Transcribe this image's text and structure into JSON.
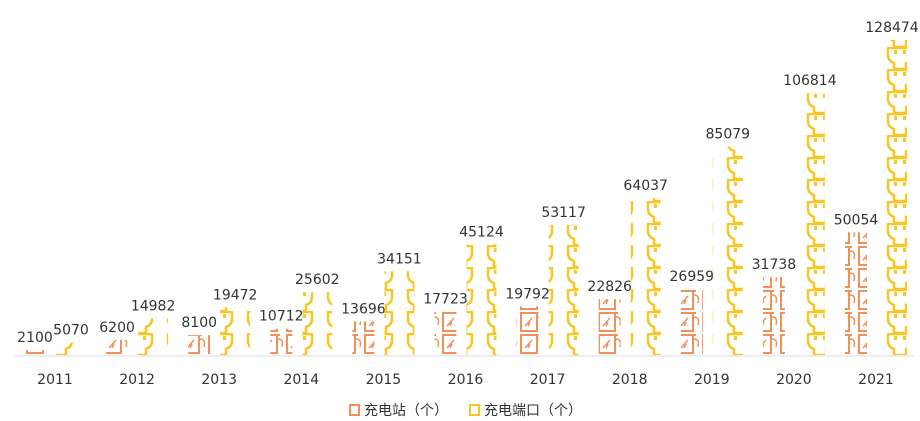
{
  "chart_data": {
    "type": "pictorial-bar",
    "categories": [
      "2011",
      "2012",
      "2013",
      "2014",
      "2015",
      "2016",
      "2017",
      "2018",
      "2019",
      "2020",
      "2021"
    ],
    "series": [
      {
        "name": "充电站（个）",
        "color": "#f0905a",
        "values": [
          2100,
          6200,
          8100,
          10712,
          13696,
          17723,
          19792,
          22826,
          26959,
          31738,
          50054
        ]
      },
      {
        "name": "充电端口（个）",
        "color": "#f9c623",
        "values": [
          5070,
          14982,
          19472,
          25602,
          34151,
          45124,
          53117,
          64037,
          85079,
          106814,
          128474
        ]
      }
    ],
    "legend": "bottom"
  }
}
